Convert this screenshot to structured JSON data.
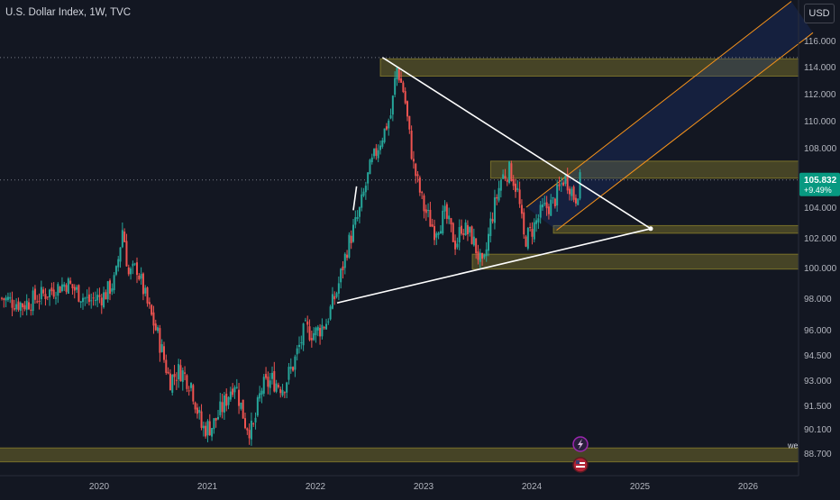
{
  "header": {
    "title": "U.S. Dollar Index, 1W, TVC"
  },
  "currency_label": "USD",
  "price_badge": {
    "price": "105.832",
    "change": "+9.49%",
    "color": "#089981"
  },
  "edge_label": "we",
  "colors": {
    "background": "#131722",
    "up": "#26a69a",
    "down": "#ef5350",
    "zone": "#b5a430",
    "channel": "#f7931a",
    "channel_fill": "#1e3a8a",
    "trendline": "#ffffff",
    "axis_text": "#b2b5be",
    "dotted": "#787b86"
  },
  "chart_data": {
    "type": "candlestick",
    "title": "U.S. Dollar Index, 1W, TVC",
    "timeframe": "1W",
    "x_ticks": [
      "2020",
      "2021",
      "2022",
      "2023",
      "2024",
      "2025",
      "2026"
    ],
    "x_tick_values": [
      2020.0,
      2021.0,
      2022.0,
      2023.0,
      2024.0,
      2025.0,
      2026.0
    ],
    "y_ticks": [
      "116.000",
      "114.000",
      "112.000",
      "110.000",
      "108.000",
      "104.000",
      "102.000",
      "100.000",
      "98.000",
      "96.000",
      "94.500",
      "93.000",
      "91.500",
      "90.100",
      "88.700"
    ],
    "y_tick_values": [
      116.0,
      114.0,
      112.0,
      110.0,
      108.0,
      104.0,
      102.0,
      100.0,
      98.0,
      96.0,
      94.5,
      93.0,
      91.5,
      90.1,
      88.7
    ],
    "last_price": 105.832,
    "change_pct": "+9.49%",
    "price_path": [
      [
        2019.1,
        98.0
      ],
      [
        2019.3,
        97.6
      ],
      [
        2019.5,
        98.3
      ],
      [
        2019.7,
        99.0
      ],
      [
        2019.9,
        97.8
      ],
      [
        2020.05,
        98.2
      ],
      [
        2020.15,
        99.2
      ],
      [
        2020.22,
        102.8
      ],
      [
        2020.27,
        99.5
      ],
      [
        2020.35,
        100.0
      ],
      [
        2020.45,
        97.5
      ],
      [
        2020.55,
        95.5
      ],
      [
        2020.65,
        93.0
      ],
      [
        2020.75,
        93.6
      ],
      [
        2020.85,
        92.8
      ],
      [
        2020.95,
        90.1
      ],
      [
        2021.05,
        90.3
      ],
      [
        2021.15,
        91.5
      ],
      [
        2021.25,
        93.0
      ],
      [
        2021.35,
        90.5
      ],
      [
        2021.42,
        89.9
      ],
      [
        2021.5,
        92.5
      ],
      [
        2021.6,
        93.0
      ],
      [
        2021.7,
        92.6
      ],
      [
        2021.8,
        94.0
      ],
      [
        2021.9,
        96.0
      ],
      [
        2022.0,
        95.8
      ],
      [
        2022.1,
        96.5
      ],
      [
        2022.2,
        98.5
      ],
      [
        2022.3,
        101.5
      ],
      [
        2022.4,
        103.5
      ],
      [
        2022.5,
        106.5
      ],
      [
        2022.6,
        108.5
      ],
      [
        2022.7,
        110.5
      ],
      [
        2022.75,
        114.0
      ],
      [
        2022.82,
        112.0
      ],
      [
        2022.9,
        107.0
      ],
      [
        2023.0,
        104.0
      ],
      [
        2023.1,
        102.5
      ],
      [
        2023.2,
        103.5
      ],
      [
        2023.3,
        101.5
      ],
      [
        2023.35,
        102.8
      ],
      [
        2023.45,
        102.0
      ],
      [
        2023.55,
        99.8
      ],
      [
        2023.62,
        103.0
      ],
      [
        2023.72,
        106.0
      ],
      [
        2023.8,
        106.5
      ],
      [
        2023.87,
        105.0
      ],
      [
        2023.93,
        101.8
      ],
      [
        2024.0,
        102.5
      ],
      [
        2024.1,
        103.8
      ],
      [
        2024.2,
        104.3
      ],
      [
        2024.3,
        106.0
      ],
      [
        2024.35,
        105.5
      ],
      [
        2024.4,
        104.5
      ],
      [
        2024.45,
        105.832
      ]
    ],
    "zones": [
      {
        "from": 2022.6,
        "to": 2026.6,
        "y1": 113.3,
        "y2": 114.6
      },
      {
        "from": 2023.62,
        "to": 2026.6,
        "y1": 105.95,
        "y2": 107.1
      },
      {
        "from": 2024.2,
        "to": 2026.6,
        "y1": 102.3,
        "y2": 102.8
      },
      {
        "from": 2023.45,
        "to": 2026.6,
        "y1": 99.9,
        "y2": 100.9
      },
      {
        "from": 2019.0,
        "to": 2026.6,
        "y1": 88.2,
        "y2": 89.0
      }
    ],
    "trendlines": [
      {
        "from": [
          2022.62,
          114.7
        ],
        "to": [
          2025.1,
          102.6
        ]
      },
      {
        "from": [
          2022.2,
          97.7
        ],
        "to": [
          2025.1,
          102.6
        ]
      },
      {
        "from": [
          2022.35,
          103.8
        ],
        "to": [
          2022.38,
          105.4
        ]
      }
    ],
    "channel": {
      "upper": [
        [
          2023.95,
          104.0
        ],
        [
          2026.4,
          119.0
        ]
      ],
      "lower": [
        [
          2024.23,
          102.5
        ],
        [
          2026.6,
          116.6
        ]
      ]
    },
    "dotted_levels": [
      114.7,
      105.832
    ],
    "ylim": [
      87.8,
      116.9
    ],
    "xlim": [
      2019.0,
      2026.6
    ],
    "grid": false
  }
}
